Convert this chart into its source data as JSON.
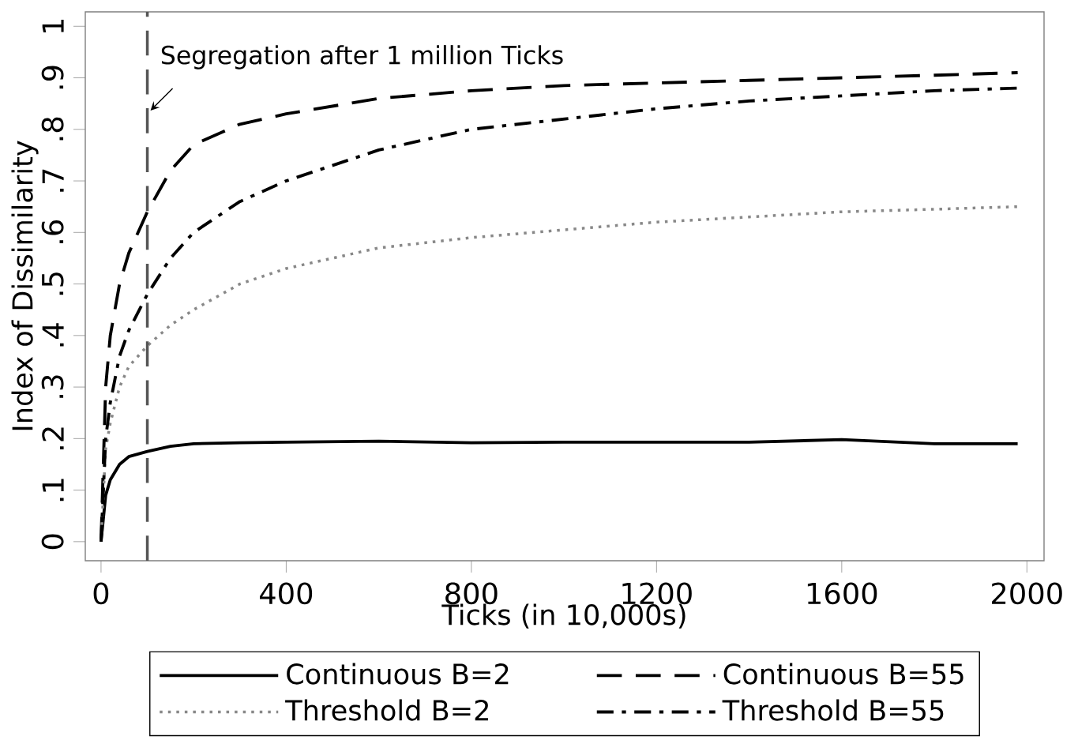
{
  "chart_data": {
    "type": "line",
    "xlabel": "Ticks (in 10,000s)",
    "ylabel": "Index of Dissimilarity",
    "x": [
      0,
      10,
      20,
      40,
      60,
      100,
      150,
      200,
      300,
      400,
      600,
      800,
      1000,
      1200,
      1400,
      1600,
      1800,
      1980
    ],
    "series": [
      {
        "name": "Continuous B=2",
        "color": "#000000",
        "line_style": "solid",
        "values": [
          0,
          0.09,
          0.12,
          0.15,
          0.165,
          0.175,
          0.185,
          0.19,
          0.192,
          0.193,
          0.195,
          0.192,
          0.193,
          0.193,
          0.193,
          0.198,
          0.19,
          0.19
        ]
      },
      {
        "name": "Continuous B=55",
        "color": "#000000",
        "line_style": "dashed",
        "values": [
          0,
          0.3,
          0.4,
          0.5,
          0.56,
          0.64,
          0.72,
          0.77,
          0.81,
          0.83,
          0.86,
          0.875,
          0.885,
          0.89,
          0.895,
          0.9,
          0.905,
          0.91
        ]
      },
      {
        "name": "Threshold B=2",
        "color": "#888888",
        "line_style": "dotted",
        "values": [
          0,
          0.18,
          0.23,
          0.3,
          0.34,
          0.38,
          0.42,
          0.45,
          0.5,
          0.53,
          0.57,
          0.59,
          0.605,
          0.62,
          0.63,
          0.64,
          0.645,
          0.65
        ]
      },
      {
        "name": "Threshold B=55",
        "color": "#000000",
        "line_style": "dashdot",
        "values": [
          0,
          0.2,
          0.27,
          0.36,
          0.41,
          0.48,
          0.55,
          0.6,
          0.66,
          0.7,
          0.76,
          0.8,
          0.82,
          0.84,
          0.855,
          0.865,
          0.875,
          0.88
        ]
      }
    ],
    "xlim": [
      -34,
      2037
    ],
    "ylim": [
      -0.037,
      1.028
    ],
    "xticks": [
      0,
      400,
      800,
      1200,
      1600,
      2000
    ],
    "yticks": [
      0,
      {
        "value": 0.1,
        "label": ".1"
      },
      {
        "value": 0.2,
        "label": ".2"
      },
      {
        "value": 0.3,
        "label": ".3"
      },
      {
        "value": 0.4,
        "label": ".4"
      },
      {
        "value": 0.5,
        "label": ".5"
      },
      {
        "value": 0.6,
        "label": ".6"
      },
      {
        "value": 0.7,
        "label": ".7"
      },
      {
        "value": 0.8,
        "label": ".8"
      },
      {
        "value": 0.9,
        "label": ".9"
      },
      {
        "value": 1,
        "label": "1"
      }
    ],
    "ref_lines": [
      {
        "axis": "x",
        "value": 100,
        "label": "Segregation after 1 million Ticks",
        "color": "#555555",
        "line_style": "dashed"
      }
    ],
    "legend": "bottom",
    "grid": false,
    "marker": "none"
  }
}
